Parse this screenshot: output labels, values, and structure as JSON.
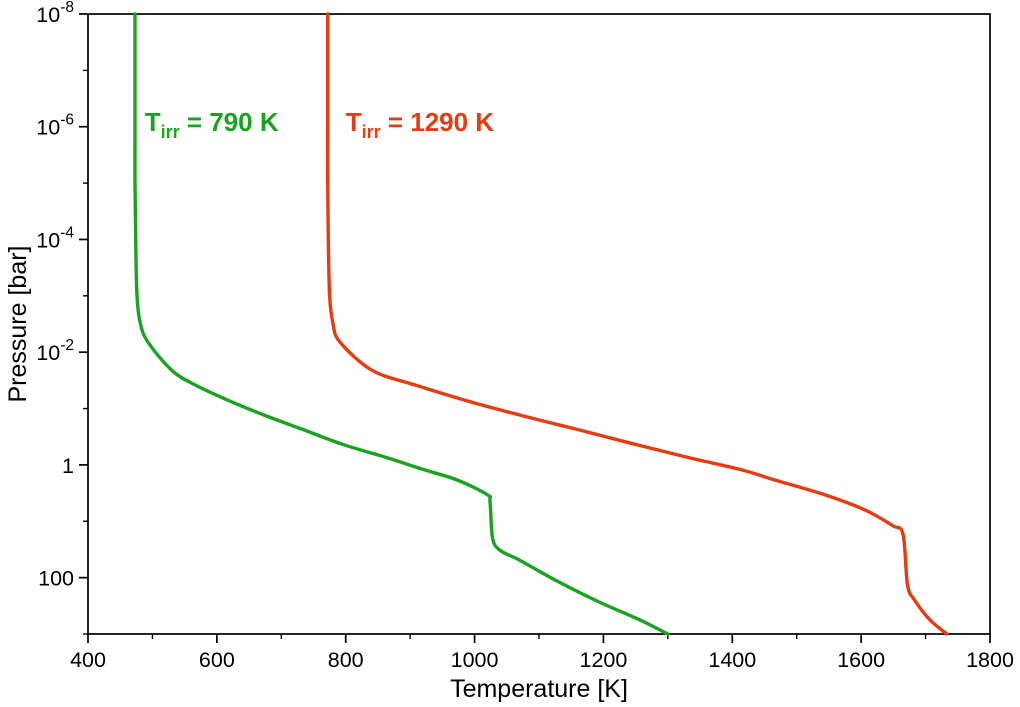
{
  "chart_data": {
    "type": "line",
    "title": "",
    "xlabel": "Temperature [K]",
    "ylabel": "Pressure [bar]",
    "xlim": [
      400,
      1800
    ],
    "y_log_range": [
      -8,
      3
    ],
    "y_axis_orientation": "inverted (low pressure 1e-8 bar at top, ~1e3 bar at bottom)",
    "grid": "off",
    "legend_position": "inline annotations",
    "x_ticks": [
      400,
      600,
      800,
      1000,
      1200,
      1400,
      1600,
      1800
    ],
    "x_minor_step": 100,
    "y_ticks": [
      {
        "p": 1e-08,
        "base": "10",
        "exp": "-8"
      },
      {
        "p": 1e-06,
        "base": "10",
        "exp": "-6"
      },
      {
        "p": 0.0001,
        "base": "10",
        "exp": "-4"
      },
      {
        "p": 0.01,
        "base": "10",
        "exp": "-2"
      },
      {
        "p": 1,
        "text": "1"
      },
      {
        "p": 100,
        "text": "100"
      }
    ],
    "y_minor_ticks": [
      1e-07,
      1e-05,
      0.001,
      0.1,
      10,
      1000
    ],
    "series": [
      {
        "id": "tirr-790",
        "name": "T_irr = 790 K",
        "color": "#1aa321",
        "label": {
          "main": "T",
          "sub": "irr",
          "rest": " = 790 K",
          "t": 488,
          "p": 1.2e-06
        },
        "points_T_P": [
          [
            473,
            1e-08
          ],
          [
            473,
            1e-07
          ],
          [
            473,
            1e-06
          ],
          [
            473,
            1e-05
          ],
          [
            474,
            0.0001
          ],
          [
            476,
            0.001
          ],
          [
            481,
            0.003
          ],
          [
            493,
            0.0066
          ],
          [
            530,
            0.021
          ],
          [
            566,
            0.038
          ],
          [
            617,
            0.071
          ],
          [
            673,
            0.13
          ],
          [
            731,
            0.23
          ],
          [
            795,
            0.43
          ],
          [
            865,
            0.75
          ],
          [
            920,
            1.2
          ],
          [
            973,
            1.85
          ],
          [
            1020,
            3.4
          ],
          [
            1024,
            4.5
          ],
          [
            1028,
            20
          ],
          [
            1040,
            33
          ],
          [
            1070,
            49
          ],
          [
            1125,
            110
          ],
          [
            1187,
            250
          ],
          [
            1257,
            567
          ],
          [
            1300,
            1000
          ]
        ]
      },
      {
        "id": "tirr-1290",
        "name": "T_irr = 1290 K",
        "color": "#e73c0f",
        "label": {
          "main": "T",
          "sub": "irr",
          "rest": " = 1290 K",
          "t": 800,
          "p": 1.2e-06
        },
        "points_T_P": [
          [
            772,
            1e-08
          ],
          [
            772,
            1e-07
          ],
          [
            772,
            1e-06
          ],
          [
            772,
            1e-05
          ],
          [
            773,
            0.0001
          ],
          [
            775,
            0.001
          ],
          [
            780,
            0.003
          ],
          [
            791,
            0.0066
          ],
          [
            841,
            0.021
          ],
          [
            907,
            0.038
          ],
          [
            985,
            0.071
          ],
          [
            1070,
            0.13
          ],
          [
            1156,
            0.23
          ],
          [
            1249,
            0.43
          ],
          [
            1334,
            0.75
          ],
          [
            1412,
            1.2
          ],
          [
            1466,
            1.85
          ],
          [
            1544,
            3.4
          ],
          [
            1606,
            6.3
          ],
          [
            1649,
            12
          ],
          [
            1665,
            17
          ],
          [
            1672,
            135
          ],
          [
            1683,
            250
          ],
          [
            1707,
            567
          ],
          [
            1733,
            1000
          ]
        ]
      }
    ]
  }
}
